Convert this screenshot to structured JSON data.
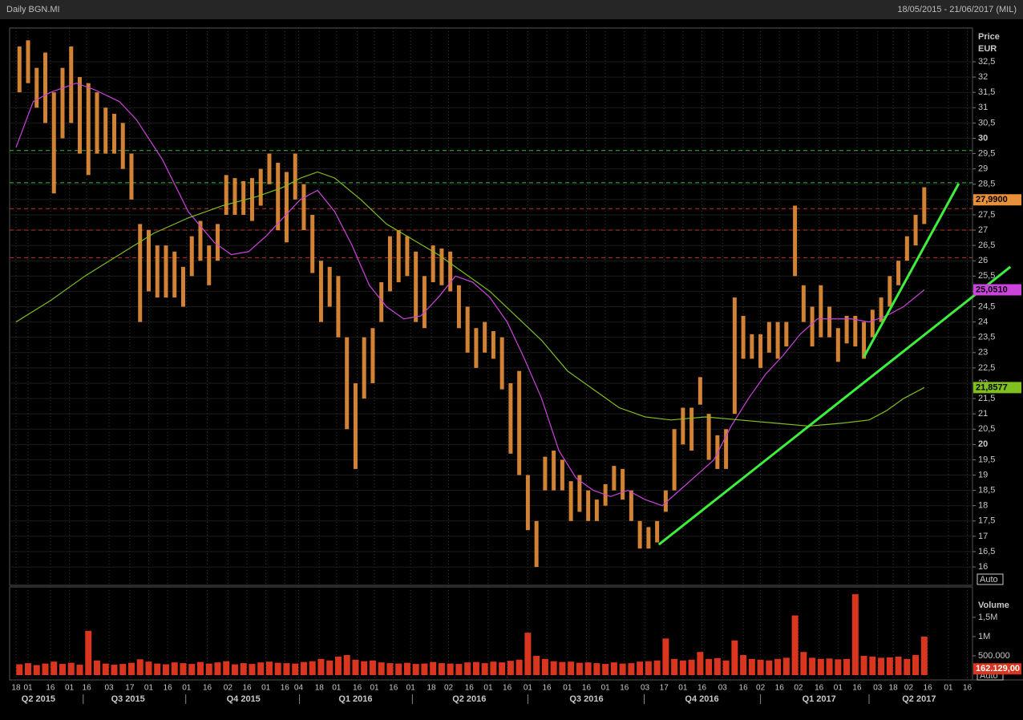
{
  "header": {
    "title": "Daily BGN.MI",
    "range": "18/05/2015 - 21/06/2017 (MIL)"
  },
  "chart_data": [
    {
      "type": "range-bar",
      "y_label": "Price",
      "y_unit": "EUR",
      "scale_label": "Auto",
      "color": "#e8903a",
      "x": [
        0,
        5,
        10,
        15,
        20,
        25,
        30,
        35,
        40,
        45,
        50,
        55,
        60,
        65,
        70,
        75,
        80,
        85,
        90,
        95,
        100,
        105,
        110,
        115,
        120,
        125,
        130,
        135,
        140,
        145,
        150,
        155,
        160,
        165,
        170,
        175,
        180,
        185,
        190,
        195,
        200,
        205,
        210,
        215,
        220,
        225,
        230,
        235,
        240,
        245,
        250,
        255,
        260,
        265,
        270,
        275,
        280,
        285,
        290,
        295,
        300,
        305,
        310,
        315,
        320,
        325,
        330,
        335,
        340,
        345,
        350,
        355,
        360,
        365,
        370,
        375,
        380,
        385,
        390,
        395,
        400,
        405,
        410,
        415,
        420,
        425,
        430,
        435,
        440,
        445,
        450,
        455,
        460,
        465,
        470,
        475,
        480,
        485,
        490,
        495,
        500,
        505,
        510,
        515,
        520,
        525
      ],
      "high": [
        33,
        33.2,
        32.3,
        32.8,
        31.5,
        32.3,
        33,
        32,
        31.8,
        31.5,
        31,
        30.8,
        30.5,
        29.5,
        27.2,
        27,
        26.5,
        26.5,
        26.3,
        25.8,
        26.8,
        27.3,
        26.5,
        27.2,
        28.8,
        28.7,
        28.6,
        28.7,
        29,
        29.5,
        29.2,
        28.9,
        29.5,
        28.5,
        27.5,
        26,
        25.8,
        25.5,
        23.5,
        22,
        23.5,
        23.8,
        25.3,
        26.8,
        27,
        26.8,
        26.3,
        25.5,
        26.5,
        26.4,
        26.3,
        25.2,
        24.5,
        23.8,
        24,
        23.7,
        23.5,
        22,
        22.4,
        19,
        17.5,
        19.6,
        19.8,
        19.5,
        18.8,
        19,
        18.5,
        18.2,
        18.7,
        19.3,
        19.2,
        18.5,
        17.5,
        17.3,
        17.5,
        18.5,
        20.5,
        21.2,
        21.2,
        22.2,
        21,
        20.3,
        20.5,
        24.8,
        24.2,
        23.6,
        23.6,
        24,
        24,
        24,
        27.8,
        25.2,
        24.5,
        25.2,
        24.5,
        23.8,
        24.2,
        24.2,
        24,
        24.4,
        24.8,
        25.5,
        26,
        26.8,
        27.5,
        28.4
      ],
      "low": [
        31.5,
        31.8,
        31,
        30.5,
        28.2,
        30,
        30.5,
        29.5,
        28.8,
        29.5,
        29.5,
        29.5,
        29,
        28,
        24,
        25,
        24.8,
        24.8,
        24.8,
        24.5,
        25.5,
        26,
        25.2,
        26,
        27.5,
        27.5,
        27.5,
        27.3,
        27.8,
        28.5,
        27,
        26.6,
        28,
        27,
        25.6,
        24,
        24.5,
        23.5,
        20.5,
        19.2,
        21.5,
        22,
        24,
        25,
        25.3,
        25.5,
        24,
        23.8,
        25.3,
        25.2,
        25,
        23.8,
        23,
        22.5,
        23,
        22.8,
        21.8,
        19.7,
        19,
        17.2,
        16,
        18.5,
        18.5,
        18.5,
        17.5,
        17.8,
        17.5,
        17.5,
        18,
        18.5,
        18.2,
        17.5,
        16.6,
        16.6,
        16.8,
        17.8,
        18.5,
        20,
        19.8,
        21.3,
        19.5,
        19.2,
        19.2,
        21,
        22.8,
        22.8,
        22.5,
        23,
        22.8,
        23.2,
        25.5,
        24,
        23.2,
        23.5,
        23.5,
        22.7,
        23.3,
        23.2,
        22.8,
        23.5,
        24,
        24.5,
        25.2,
        26,
        26.5,
        27.2
      ],
      "last": {
        "value": 27.99,
        "label": "27,9900"
      },
      "averages": [
        {
          "color": "#cc44dd",
          "x": [
            0,
            10,
            20,
            35,
            45,
            60,
            70,
            85,
            100,
            115,
            125,
            135,
            145,
            155,
            165,
            175,
            185,
            195,
            205,
            215,
            225,
            235,
            245,
            255,
            265,
            275,
            285,
            295,
            305,
            315,
            325,
            335,
            345,
            355,
            365,
            375,
            385,
            395,
            405,
            415,
            425,
            435,
            445,
            455,
            465,
            475,
            485,
            495,
            505,
            515,
            527
          ],
          "values": [
            29.7,
            31.2,
            31.5,
            31.8,
            31.6,
            31.2,
            30.6,
            29.3,
            27.6,
            26.6,
            26.2,
            26.3,
            26.8,
            27.4,
            28,
            28.3,
            27.6,
            26.5,
            25.2,
            24.5,
            24.1,
            24.2,
            24.8,
            25.5,
            25.3,
            24.8,
            24,
            22.8,
            21.5,
            19.8,
            18.9,
            18.5,
            18.3,
            18.5,
            18.2,
            18,
            18.5,
            19,
            19.5,
            20.6,
            21.5,
            22.3,
            22.9,
            23.6,
            24.1,
            24.1,
            24.1,
            24,
            24.2,
            24.5,
            25.05
          ],
          "last": {
            "value": 25.051,
            "label": "25,0510"
          }
        },
        {
          "color": "#7fbf1f",
          "x": [
            0,
            20,
            40,
            60,
            80,
            100,
            120,
            140,
            155,
            165,
            175,
            185,
            200,
            215,
            230,
            245,
            260,
            275,
            290,
            305,
            320,
            335,
            350,
            365,
            380,
            400,
            420,
            440,
            460,
            480,
            495,
            505,
            515,
            527
          ],
          "values": [
            24,
            24.7,
            25.5,
            26.2,
            26.9,
            27.4,
            27.8,
            28.1,
            28.4,
            28.7,
            28.9,
            28.7,
            28,
            27.2,
            26.7,
            26.2,
            25.6,
            25,
            24.2,
            23.4,
            22.4,
            21.8,
            21.2,
            20.9,
            20.8,
            20.9,
            20.8,
            20.7,
            20.6,
            20.7,
            20.8,
            21.1,
            21.5,
            21.86
          ],
          "last": {
            "value": 21.8577,
            "label": "21,8577"
          }
        }
      ],
      "levels": [
        {
          "value": 29.6,
          "color": "#2fbf2f"
        },
        {
          "value": 28.55,
          "color": "#2fbf2f"
        },
        {
          "value": 27.7,
          "color": "#c0302a"
        },
        {
          "value": 27.0,
          "color": "#c0302a"
        },
        {
          "value": 26.1,
          "color": "#c0302a"
        }
      ],
      "trendlines": [
        {
          "color": "#3ef03e",
          "x": [
            373,
            577
          ],
          "values": [
            16.73,
            25.8
          ]
        },
        {
          "color": "#3ef03e",
          "x": [
            492,
            547
          ],
          "values": [
            22.86,
            28.52
          ]
        }
      ],
      "xlim": [
        -3.7,
        555
      ],
      "ylim": [
        15.4,
        33.6
      ],
      "yticks": [
        16,
        {
          "value": 16.5,
          "label": "16,5"
        },
        17,
        {
          "value": 17.5,
          "label": "17,5"
        },
        18,
        {
          "value": 18.5,
          "label": "18,5"
        },
        19,
        {
          "value": 19.5,
          "label": "19,5"
        },
        20,
        {
          "value": 20.5,
          "label": "20,5"
        },
        21,
        {
          "value": 21.5,
          "label": "21,5"
        },
        22,
        {
          "value": 22.5,
          "label": "22,5"
        },
        23,
        {
          "value": 23.5,
          "label": "23,5"
        },
        24,
        {
          "value": 24.5,
          "label": "24,5"
        },
        25,
        {
          "value": 25.5,
          "label": "25,5"
        },
        26,
        {
          "value": 26.5,
          "label": "26,5"
        },
        27,
        {
          "value": 27.5,
          "label": "27,5"
        },
        28,
        {
          "value": 28.5,
          "label": "28,5"
        },
        29,
        {
          "value": 29.5,
          "label": "29,5"
        },
        30,
        {
          "value": 30.5,
          "label": "30,5"
        },
        31,
        {
          "value": 31.5,
          "label": "31,5"
        },
        32,
        {
          "value": 32.5,
          "label": "32,5"
        }
      ],
      "xticks": [
        {
          "value": 0,
          "label": "18"
        },
        {
          "value": 7,
          "label": "01"
        },
        {
          "value": 20,
          "label": "16"
        },
        {
          "value": 31,
          "label": "01"
        },
        {
          "value": 41,
          "label": "16"
        },
        {
          "value": 54,
          "label": "03"
        },
        {
          "value": 66,
          "label": "17"
        },
        {
          "value": 77,
          "label": "01"
        },
        {
          "value": 88,
          "label": "16"
        },
        {
          "value": 99,
          "label": "01"
        },
        {
          "value": 111,
          "label": "16"
        },
        {
          "value": 123,
          "label": "02"
        },
        {
          "value": 134,
          "label": "16"
        },
        {
          "value": 145,
          "label": "01"
        },
        {
          "value": 156,
          "label": "16"
        },
        {
          "value": 164,
          "label": "04"
        },
        {
          "value": 176,
          "label": "18"
        },
        {
          "value": 186,
          "label": "01"
        },
        {
          "value": 198,
          "label": "16"
        },
        {
          "value": 208,
          "label": "01"
        },
        {
          "value": 219,
          "label": "16"
        },
        {
          "value": 229,
          "label": "01"
        },
        {
          "value": 241,
          "label": "18"
        },
        {
          "value": 251,
          "label": "02"
        },
        {
          "value": 263,
          "label": "16"
        },
        {
          "value": 274,
          "label": "01"
        },
        {
          "value": 285,
          "label": "16"
        },
        {
          "value": 297,
          "label": "01"
        },
        {
          "value": 308,
          "label": "16"
        },
        {
          "value": 320,
          "label": "01"
        },
        {
          "value": 331,
          "label": "16"
        },
        {
          "value": 342,
          "label": "01"
        },
        {
          "value": 353,
          "label": "16"
        },
        {
          "value": 365,
          "label": "03"
        },
        {
          "value": 376,
          "label": "17"
        },
        {
          "value": 387,
          "label": "01"
        },
        {
          "value": 398,
          "label": "16"
        },
        {
          "value": 410,
          "label": "03"
        },
        {
          "value": 422,
          "label": "16"
        },
        {
          "value": 432,
          "label": "02"
        },
        {
          "value": 443,
          "label": "16"
        },
        {
          "value": 454,
          "label": "02"
        },
        {
          "value": 466,
          "label": "16"
        },
        {
          "value": 477,
          "label": "01"
        },
        {
          "value": 488,
          "label": "16"
        },
        {
          "value": 500,
          "label": "03"
        },
        {
          "value": 509,
          "label": "18"
        },
        {
          "value": 518,
          "label": "02"
        },
        {
          "value": 529,
          "label": "16"
        },
        {
          "value": 541,
          "label": "01"
        },
        {
          "value": 552,
          "label": "16"
        }
      ],
      "quarters": [
        {
          "value": 13,
          "label": "Q2 2015"
        },
        {
          "value": 65,
          "label": "Q3 2015"
        },
        {
          "value": 132,
          "label": "Q4 2015"
        },
        {
          "value": 197,
          "label": "Q1 2016"
        },
        {
          "value": 263,
          "label": "Q2 2016"
        },
        {
          "value": 331,
          "label": "Q3 2016"
        },
        {
          "value": 398,
          "label": "Q4 2016"
        },
        {
          "value": 466,
          "label": "Q1 2017"
        },
        {
          "value": 524,
          "label": "Q2 2017"
        }
      ]
    },
    {
      "type": "bar",
      "y_label": "Volume",
      "scale_label": "Auto",
      "color": "#d9351f",
      "values": [
        280000,
        310000,
        260000,
        300000,
        350000,
        290000,
        320000,
        270000,
        1150000,
        380000,
        300000,
        270000,
        290000,
        320000,
        410000,
        350000,
        300000,
        280000,
        330000,
        310000,
        290000,
        340000,
        300000,
        330000,
        360000,
        280000,
        310000,
        290000,
        330000,
        350000,
        320000,
        310000,
        300000,
        340000,
        360000,
        420000,
        380000,
        480000,
        520000,
        400000,
        360000,
        380000,
        330000,
        310000,
        300000,
        320000,
        290000,
        300000,
        340000,
        310000,
        300000,
        290000,
        330000,
        340000,
        310000,
        350000,
        330000,
        370000,
        400000,
        1100000,
        500000,
        420000,
        360000,
        340000,
        350000,
        320000,
        330000,
        310000,
        290000,
        330000,
        300000,
        310000,
        350000,
        360000,
        380000,
        950000,
        420000,
        380000,
        400000,
        600000,
        420000,
        440000,
        380000,
        900000,
        520000,
        420000,
        400000,
        380000,
        420000,
        450000,
        1550000,
        600000,
        450000,
        420000,
        430000,
        410000,
        420000,
        2100000,
        500000,
        480000,
        450000,
        460000,
        480000,
        420000,
        520000,
        1000000
      ],
      "last": {
        "value": 162129,
        "label": "162.129,00"
      },
      "ylim": [
        0,
        2290000
      ],
      "yticks": [
        {
          "value": 500000,
          "label": "500.000"
        },
        {
          "value": 1000000,
          "label": "1M"
        },
        {
          "value": 1500000,
          "label": "1,5M"
        }
      ]
    }
  ]
}
